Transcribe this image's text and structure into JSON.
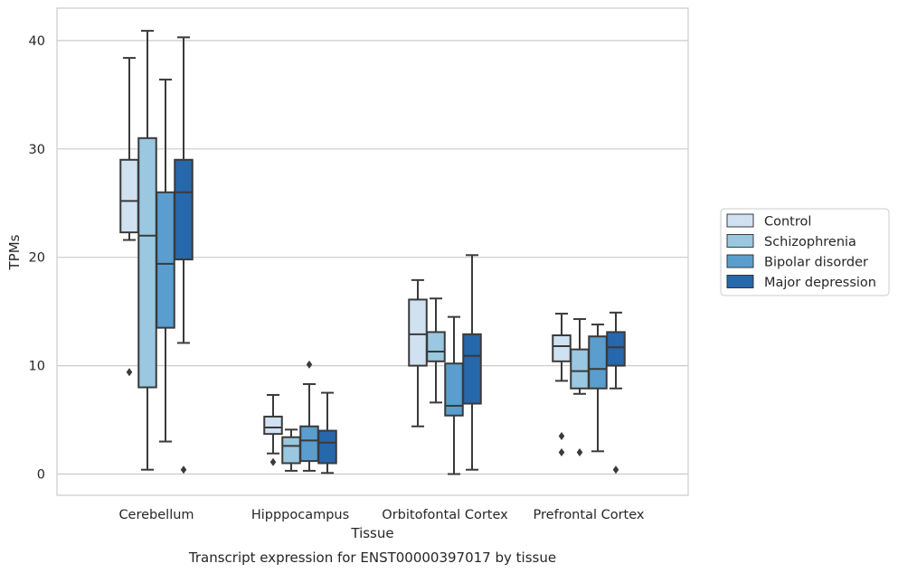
{
  "chart_data": {
    "type": "box",
    "title": "Transcript expression for ENST00000397017 by tissue",
    "xlabel": "Tissue",
    "ylabel": "TPMs",
    "ylim": [
      -1.8,
      43
    ],
    "yticks": [
      0,
      10,
      20,
      30,
      40
    ],
    "grid": "horizontal",
    "legend_position": "right",
    "categories": [
      "Cerebellum",
      "Hipppocampus",
      "Orbitofontal Cortex",
      "Prefrontal Cortex"
    ],
    "series": [
      {
        "name": "Control",
        "color": "#d0e1f2",
        "boxes": [
          {
            "whislo": 21.6,
            "q1": 22.3,
            "med": 25.2,
            "q3": 29.0,
            "whishi": 38.4,
            "fliers": [
              9.4
            ]
          },
          {
            "whislo": 1.9,
            "q1": 3.7,
            "med": 4.3,
            "q3": 5.3,
            "whishi": 7.3,
            "fliers": [
              1.1
            ]
          },
          {
            "whislo": 4.4,
            "q1": 10.0,
            "med": 12.9,
            "q3": 16.1,
            "whishi": 17.9,
            "fliers": []
          },
          {
            "whislo": 8.6,
            "q1": 10.4,
            "med": 11.8,
            "q3": 12.8,
            "whishi": 14.8,
            "fliers": [
              3.5,
              2.0
            ]
          }
        ]
      },
      {
        "name": "Schizophrenia",
        "color": "#9ac8e0",
        "boxes": [
          {
            "whislo": 0.4,
            "q1": 8.0,
            "med": 22.0,
            "q3": 31.0,
            "whishi": 40.9,
            "fliers": []
          },
          {
            "whislo": 0.3,
            "q1": 1.0,
            "med": 2.6,
            "q3": 3.4,
            "whishi": 4.1,
            "fliers": []
          },
          {
            "whislo": 6.6,
            "q1": 10.4,
            "med": 11.3,
            "q3": 13.1,
            "whishi": 16.2,
            "fliers": []
          },
          {
            "whislo": 7.4,
            "q1": 7.9,
            "med": 9.5,
            "q3": 11.5,
            "whishi": 14.3,
            "fliers": [
              2.0
            ]
          }
        ]
      },
      {
        "name": "Bipolar disorder",
        "color": "#5a9ecf",
        "boxes": [
          {
            "whislo": 3.0,
            "q1": 13.5,
            "med": 19.4,
            "q3": 26.0,
            "whishi": 36.4,
            "fliers": []
          },
          {
            "whislo": 0.3,
            "q1": 1.2,
            "med": 3.1,
            "q3": 4.4,
            "whishi": 8.3,
            "fliers": [
              10.1
            ]
          },
          {
            "whislo": 0.0,
            "q1": 5.4,
            "med": 6.3,
            "q3": 10.2,
            "whishi": 14.5,
            "fliers": []
          },
          {
            "whislo": 2.1,
            "q1": 7.9,
            "med": 9.7,
            "q3": 12.7,
            "whishi": 13.8,
            "fliers": []
          }
        ]
      },
      {
        "name": "Major depression",
        "color": "#2767ab",
        "boxes": [
          {
            "whislo": 12.1,
            "q1": 19.8,
            "med": 26.0,
            "q3": 29.0,
            "whishi": 40.3,
            "fliers": [
              0.4
            ]
          },
          {
            "whislo": 0.1,
            "q1": 1.0,
            "med": 2.9,
            "q3": 4.0,
            "whishi": 7.5,
            "fliers": []
          },
          {
            "whislo": 0.4,
            "q1": 6.5,
            "med": 10.9,
            "q3": 12.9,
            "whishi": 20.2,
            "fliers": []
          },
          {
            "whislo": 7.9,
            "q1": 10.0,
            "med": 11.7,
            "q3": 13.1,
            "whishi": 14.9,
            "fliers": [
              0.4
            ]
          }
        ]
      }
    ]
  }
}
